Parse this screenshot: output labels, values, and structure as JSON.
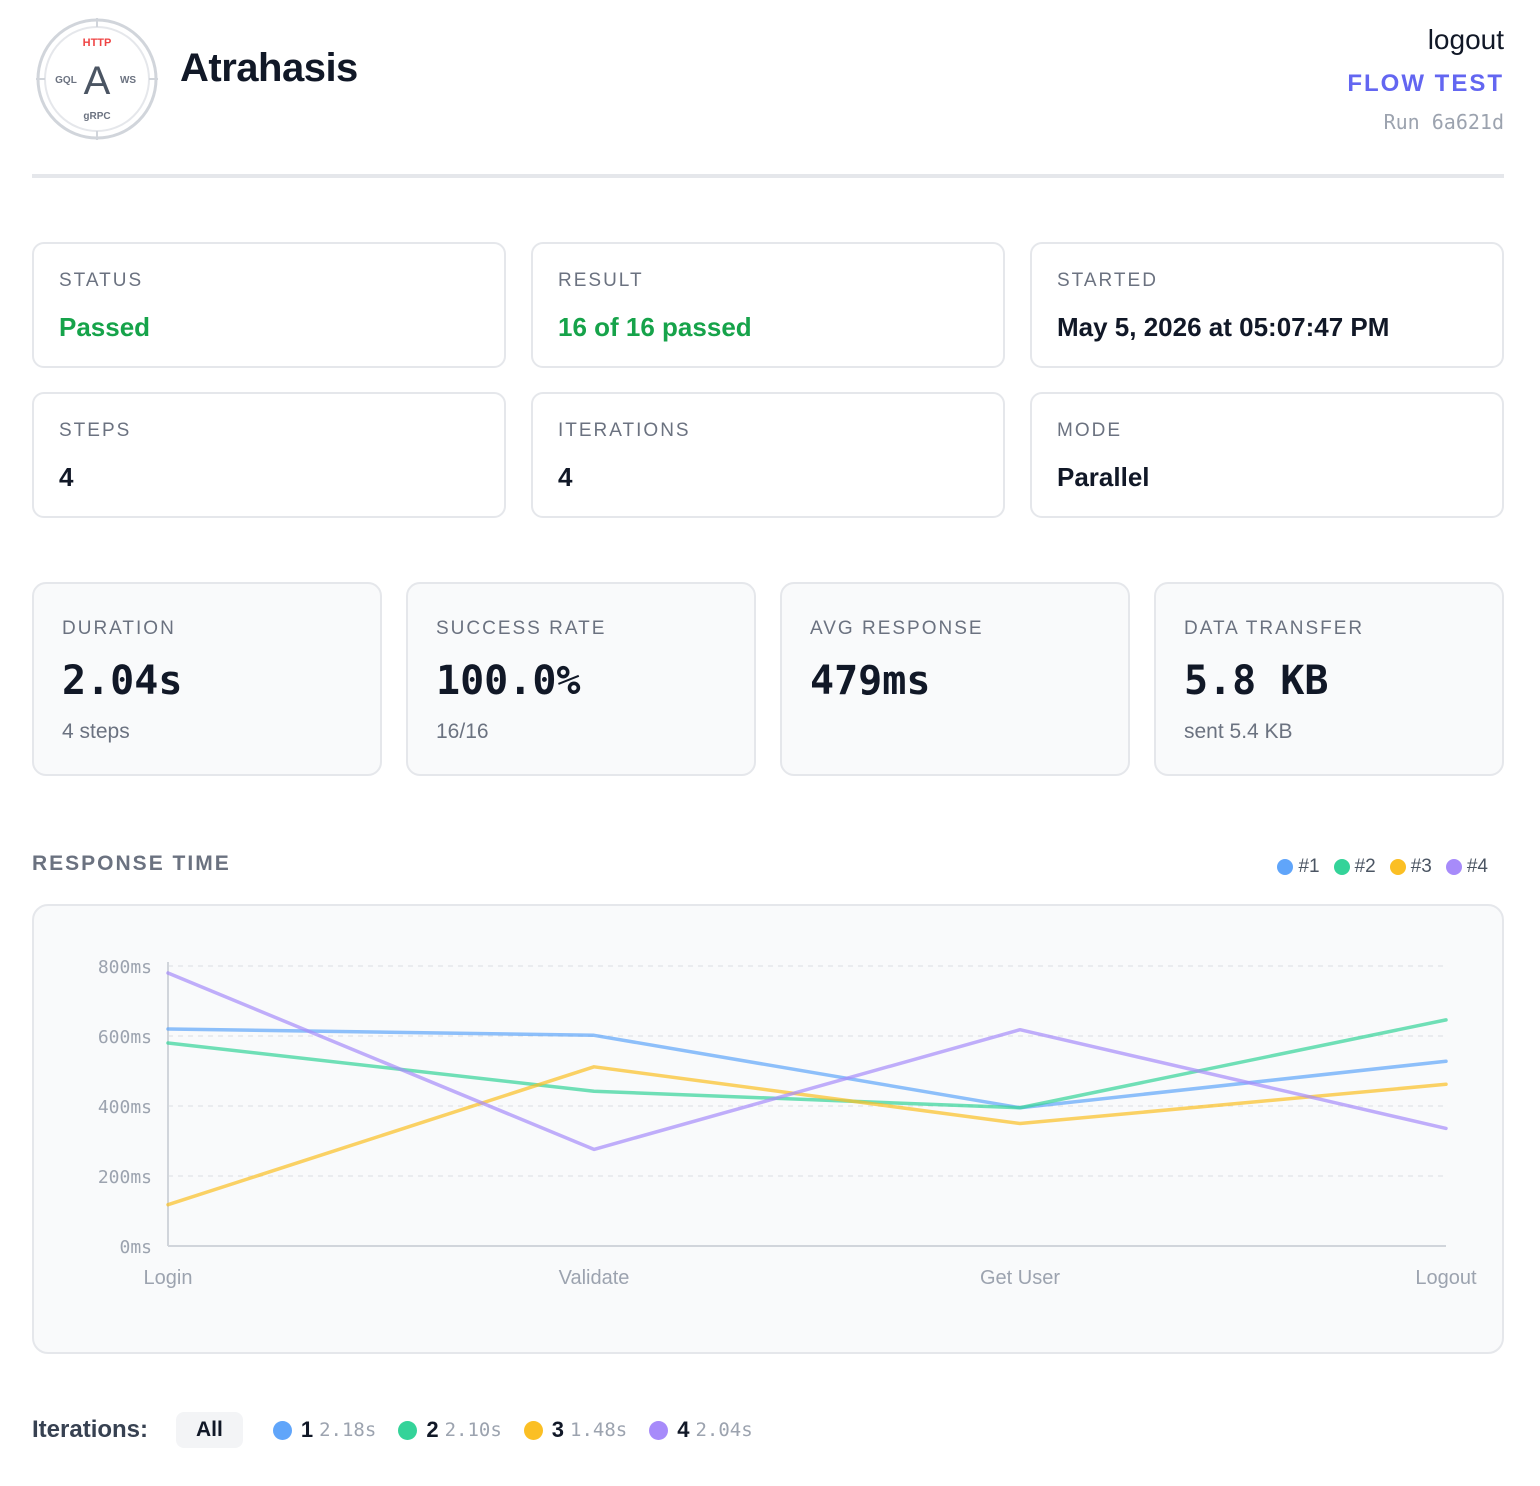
{
  "header": {
    "logo": {
      "center_letter": "A",
      "top": "HTTP",
      "left": "GQL",
      "right": "WS",
      "bottom": "gRPC"
    },
    "brand": "Atrahasis",
    "logout_label": "logout",
    "mode_label": "FLOW TEST",
    "run_label": "Run 6a621d"
  },
  "info_cards": [
    {
      "label": "STATUS",
      "value": "Passed",
      "tone": "success"
    },
    {
      "label": "RESULT",
      "value": "16 of 16 passed",
      "tone": "success"
    },
    {
      "label": "STARTED",
      "value": "May 5, 2026 at 05:07:47 PM",
      "tone": "default"
    },
    {
      "label": "STEPS",
      "value": "4",
      "tone": "default"
    },
    {
      "label": "ITERATIONS",
      "value": "4",
      "tone": "default"
    },
    {
      "label": "MODE",
      "value": "Parallel",
      "tone": "default"
    }
  ],
  "metrics": [
    {
      "label": "DURATION",
      "value": "2.04s",
      "sub": "4 steps",
      "tone": "default"
    },
    {
      "label": "SUCCESS RATE",
      "value": "100.0%",
      "sub": "16/16",
      "tone": "success"
    },
    {
      "label": "AVG RESPONSE",
      "value": "479ms",
      "sub": "",
      "tone": "default"
    },
    {
      "label": "DATA TRANSFER",
      "value": "5.8 KB",
      "sub": "sent 5.4 KB",
      "tone": "default"
    }
  ],
  "chart_section": {
    "title": "RESPONSE TIME"
  },
  "chart_data": {
    "type": "line",
    "title": "",
    "xlabel": "",
    "ylabel": "",
    "categories": [
      "Login",
      "Validate",
      "Get User",
      "Logout"
    ],
    "ylim": [
      0,
      800
    ],
    "yticks": [
      "0ms",
      "200ms",
      "400ms",
      "600ms",
      "800ms"
    ],
    "grid": true,
    "legend_position": "top-right",
    "series": [
      {
        "name": "#1",
        "color": "#60a5fa",
        "values": [
          620,
          602,
          395,
          528
        ]
      },
      {
        "name": "#2",
        "color": "#34d399",
        "values": [
          580,
          442,
          395,
          646
        ]
      },
      {
        "name": "#3",
        "color": "#fbbf24",
        "values": [
          118,
          512,
          350,
          462
        ]
      },
      {
        "name": "#4",
        "color": "#a78bfa",
        "values": [
          780,
          276,
          618,
          336
        ]
      }
    ]
  },
  "iterations": {
    "label": "Iterations:",
    "all_label": "All",
    "items": [
      {
        "num": "1",
        "time": "2.18s",
        "color": "#60a5fa"
      },
      {
        "num": "2",
        "time": "2.10s",
        "color": "#34d399"
      },
      {
        "num": "3",
        "time": "1.48s",
        "color": "#fbbf24"
      },
      {
        "num": "4",
        "time": "2.04s",
        "color": "#a78bfa"
      }
    ]
  },
  "colors": {
    "accent": "#6366f1",
    "success": "#16a34a"
  }
}
